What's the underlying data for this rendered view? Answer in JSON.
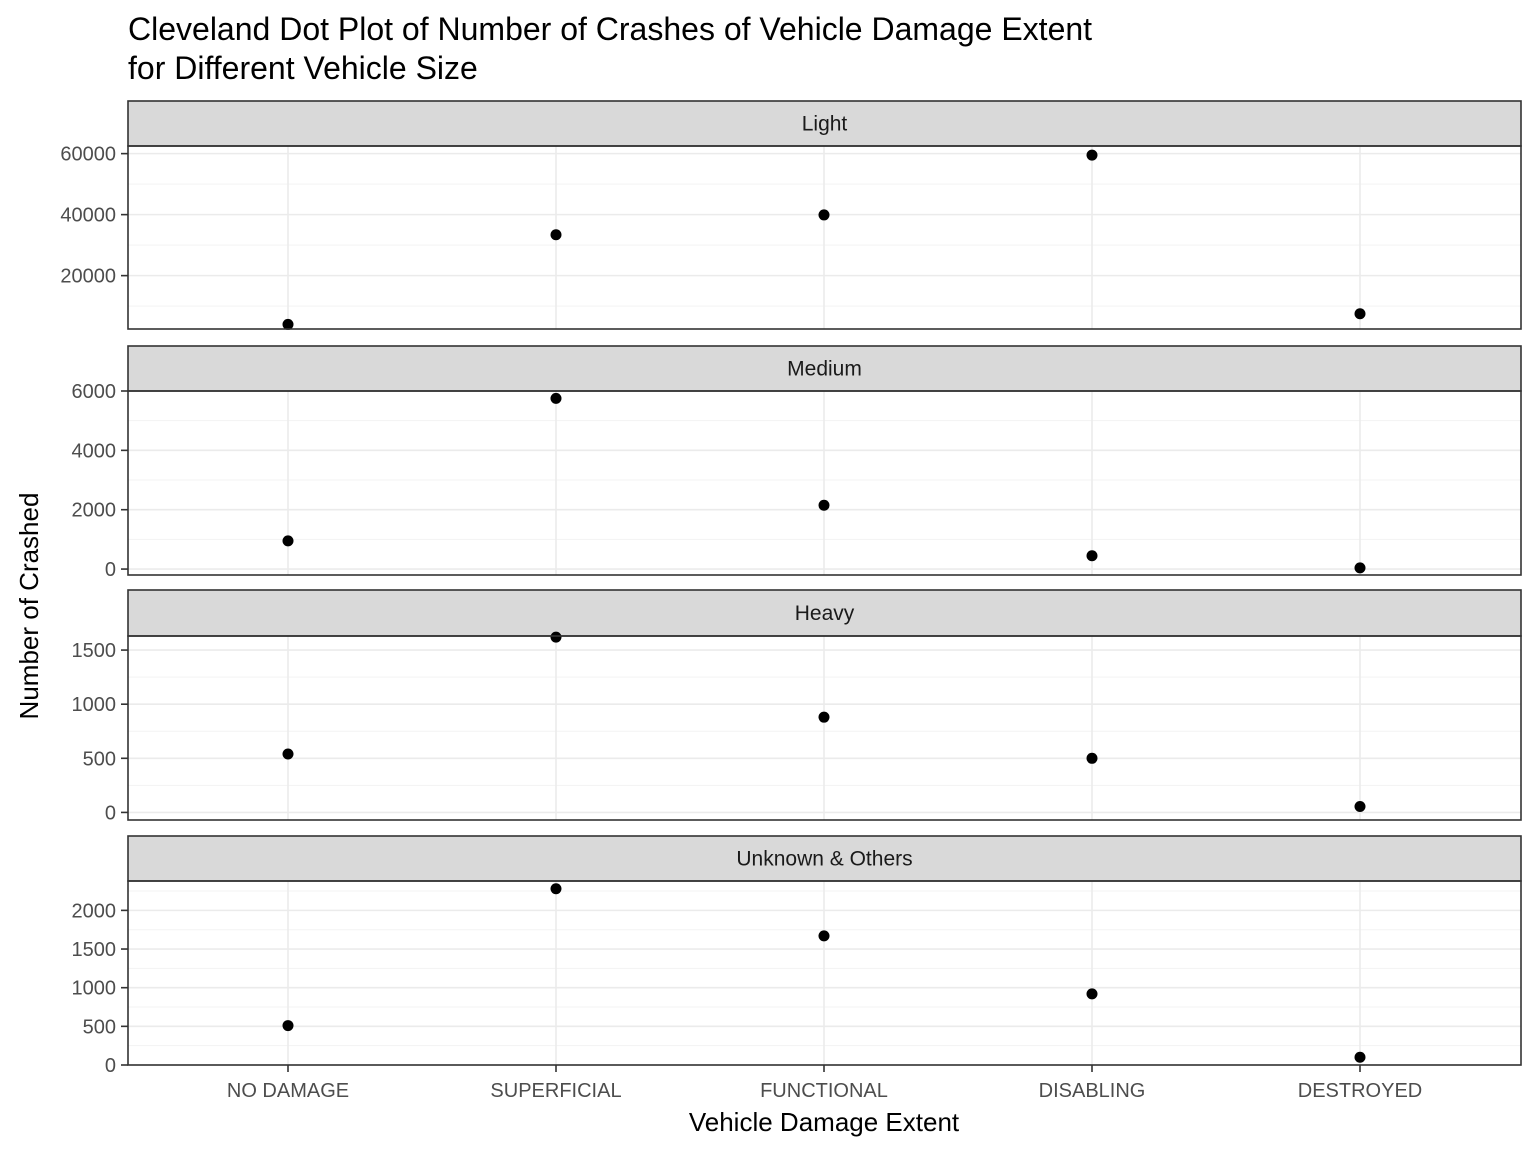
{
  "chart_data": {
    "type": "scatter",
    "title_lines": [
      "Cleveland Dot Plot of Number of Crashes of Vehicle Damage Extent",
      "for Different Vehicle Size"
    ],
    "xlabel": "Vehicle Damage Extent",
    "ylabel": "Number of Crashed",
    "categories": [
      "NO DAMAGE",
      "SUPERFICIAL",
      "FUNCTIONAL",
      "DISABLING",
      "DESTROYED"
    ],
    "grid": true,
    "facets": [
      {
        "name": "Light",
        "values": [
          4000,
          33400,
          39900,
          59500,
          7500
        ],
        "ylim": [
          2500,
          62500
        ],
        "yticks": [
          20000,
          40000,
          60000
        ],
        "ytick_labels": [
          "20000",
          "40000",
          "60000"
        ]
      },
      {
        "name": "Medium",
        "values": [
          950,
          5750,
          2150,
          450,
          40
        ],
        "ylim": [
          -200,
          6000
        ],
        "yticks": [
          0,
          2000,
          4000,
          6000
        ],
        "ytick_labels": [
          "0",
          "2000",
          "4000",
          "6000"
        ]
      },
      {
        "name": "Heavy",
        "values": [
          540,
          1620,
          880,
          500,
          55
        ],
        "ylim": [
          -70,
          1630
        ],
        "yticks": [
          0,
          500,
          1000,
          1500
        ],
        "ytick_labels": [
          "0",
          "500",
          "1000",
          "1500"
        ]
      },
      {
        "name": "Unknown & Others",
        "values": [
          510,
          2280,
          1670,
          920,
          100
        ],
        "ylim": [
          0,
          2380
        ],
        "yticks": [
          0,
          500,
          1000,
          1500,
          2000
        ],
        "ytick_labels": [
          "0",
          "500",
          "1000",
          "1500",
          "2000"
        ]
      }
    ],
    "colors": {
      "point": "#000000",
      "strip_fill": "#d9d9d9",
      "grid_major": "#ebebeb",
      "grid_minor": "#f3f3f3",
      "border": "#333333"
    }
  }
}
